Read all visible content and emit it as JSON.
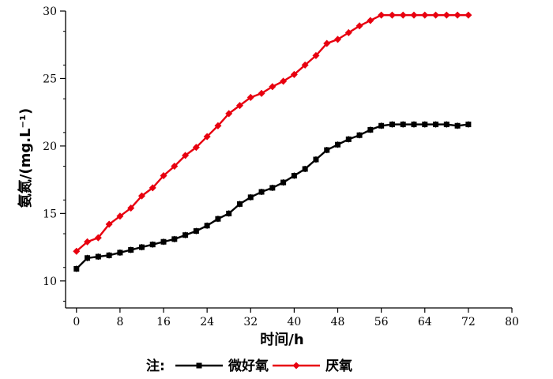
{
  "chart_data": {
    "type": "line",
    "xlabel": "时间/h",
    "ylabel": "氨氮/(mg.L⁻¹)",
    "xlim": [
      -2,
      80
    ],
    "ylim": [
      8,
      30
    ],
    "xticks": [
      0,
      8,
      16,
      24,
      32,
      40,
      48,
      56,
      64,
      72,
      80
    ],
    "yticks": [
      10,
      15,
      20,
      25,
      30
    ],
    "grid": false,
    "legend": {
      "prefix": "注:",
      "placement": "bottom"
    },
    "x": [
      0,
      2,
      4,
      6,
      8,
      10,
      12,
      14,
      16,
      18,
      20,
      22,
      24,
      26,
      28,
      30,
      32,
      34,
      36,
      38,
      40,
      42,
      44,
      46,
      48,
      50,
      52,
      54,
      56,
      58,
      60,
      62,
      64,
      66,
      68,
      70,
      72
    ],
    "series": [
      {
        "name": "微好氧",
        "color": "#000000",
        "marker": "square",
        "values": [
          10.9,
          11.7,
          11.8,
          11.9,
          12.1,
          12.3,
          12.5,
          12.7,
          12.9,
          13.1,
          13.4,
          13.7,
          14.1,
          14.6,
          15.0,
          15.7,
          16.2,
          16.6,
          16.9,
          17.3,
          17.8,
          18.3,
          19.0,
          19.7,
          20.1,
          20.5,
          20.8,
          21.2,
          21.5,
          21.6,
          21.6,
          21.6,
          21.6,
          21.6,
          21.6,
          21.5,
          21.6
        ]
      },
      {
        "name": "厌氧",
        "color": "#e8000f",
        "marker": "diamond",
        "values": [
          12.2,
          12.9,
          13.2,
          14.2,
          14.8,
          15.4,
          16.3,
          16.9,
          17.8,
          18.5,
          19.3,
          19.9,
          20.7,
          21.5,
          22.4,
          23.0,
          23.6,
          23.9,
          24.4,
          24.8,
          25.3,
          26.0,
          26.7,
          27.6,
          27.9,
          28.4,
          28.9,
          29.3,
          29.7,
          29.7,
          29.7,
          29.7,
          29.7,
          29.7,
          29.7,
          29.7,
          29.7
        ]
      }
    ]
  }
}
